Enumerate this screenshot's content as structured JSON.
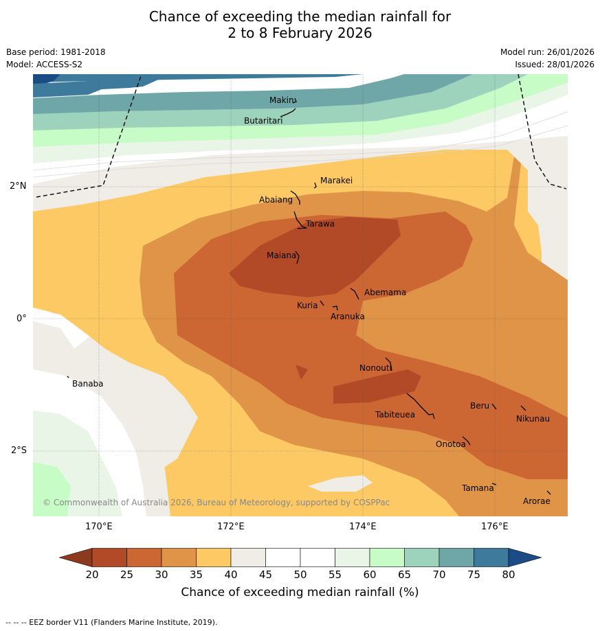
{
  "header": {
    "title_line1": "Chance of exceeding the median rainfall for",
    "title_line2": "2 to 8 February 2026",
    "base_period": "Base period: 1981-2018",
    "model": "Model: ACCESS-S2",
    "model_run": "Model run: 26/01/2026",
    "issued": "Issued: 28/01/2026"
  },
  "map": {
    "longitude_labels": [
      "170°E",
      "172°E",
      "174°E",
      "176°E"
    ],
    "latitude_labels": [
      "2°N",
      "0°",
      "2°S"
    ],
    "islands": [
      "Makin",
      "Butaritari",
      "Marakei",
      "Abaiang",
      "Tarawa",
      "Maiana",
      "Abemama",
      "Kuria",
      "Aranuka",
      "Banaba",
      "Nonouti",
      "Beru",
      "Tabiteuea",
      "Nikunau",
      "Onotoa",
      "Tamana",
      "Arorae"
    ],
    "copyright": "© Commonwealth of Australia 2026, Bureau of Meteorology, supported by COSPPac"
  },
  "colorbar": {
    "ticks": [
      "20",
      "25",
      "30",
      "35",
      "40",
      "45",
      "50",
      "55",
      "60",
      "65",
      "70",
      "75",
      "80"
    ],
    "colors": [
      "#8c3a1e",
      "#b34a27",
      "#cc6633",
      "#e09448",
      "#fdc965",
      "#f0ece6",
      "#ffffff",
      "#ffffff",
      "#e9f5e7",
      "#c8fcc6",
      "#9dd2bd",
      "#6fa6a8",
      "#3e7a9b",
      "#1b4c86"
    ],
    "label": "Chance of exceeding median rainfall (%)"
  },
  "footer": {
    "eez_note": "-- -- -- EEZ border V11 (Flanders Marine Institute, 2019)."
  }
}
